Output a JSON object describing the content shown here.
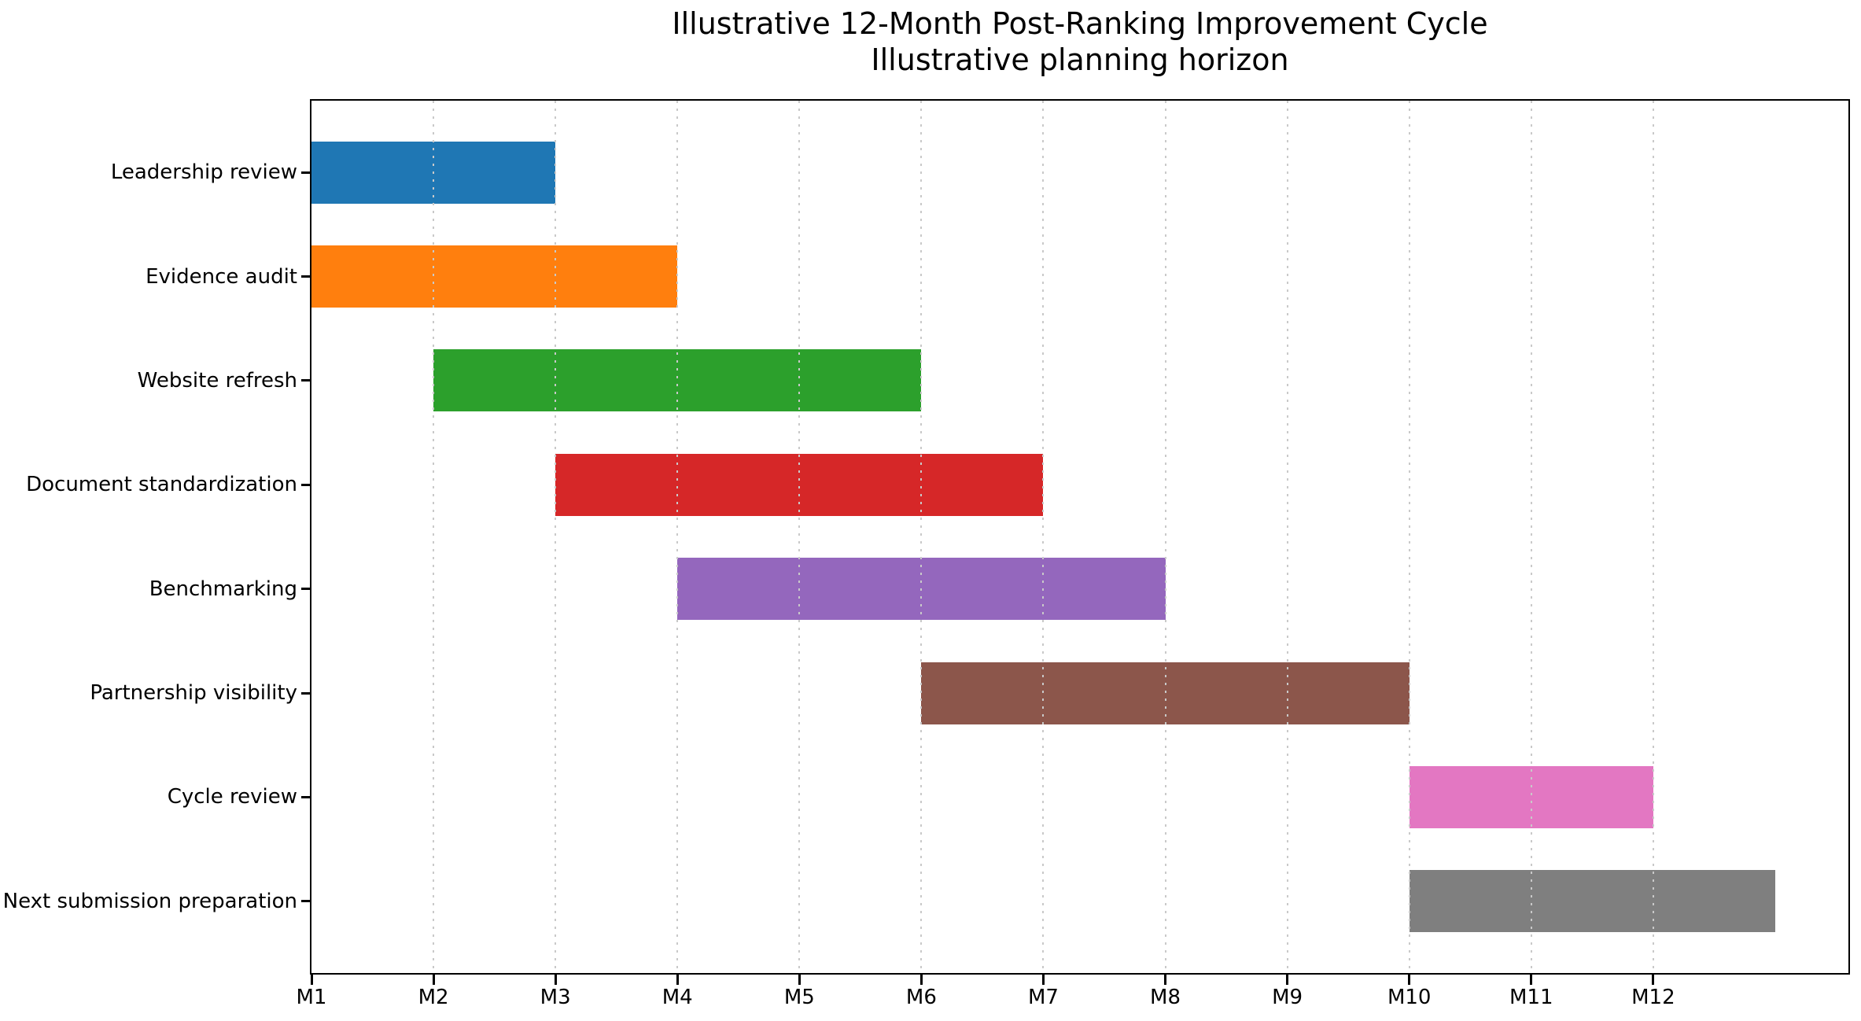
{
  "chart_data": {
    "type": "bar",
    "variant": "gantt",
    "title": "Illustrative 12-Month Post-Ranking Improvement Cycle",
    "subtitle": "Illustrative planning horizon",
    "xlabel": "",
    "ylabel": "",
    "x_tick_labels": [
      "M1",
      "M2",
      "M3",
      "M4",
      "M5",
      "M6",
      "M7",
      "M8",
      "M9",
      "M10",
      "M11",
      "M12"
    ],
    "x_tick_values": [
      1,
      2,
      3,
      4,
      5,
      6,
      7,
      8,
      9,
      10,
      11,
      12
    ],
    "xlim": [
      1,
      13.6
    ],
    "grid": {
      "axis": "x",
      "style": "dotted",
      "color": "#c9c9c9"
    },
    "background_color": "#ffffff",
    "spine_color": "#000000",
    "legend": "none",
    "tasks": [
      {
        "label": "Leadership review",
        "start_month": 1,
        "end_month": 3,
        "duration_months": 2,
        "color": "#1f77b4"
      },
      {
        "label": "Evidence audit",
        "start_month": 1,
        "end_month": 4,
        "duration_months": 3,
        "color": "#ff7f0e"
      },
      {
        "label": "Website refresh",
        "start_month": 2,
        "end_month": 6,
        "duration_months": 4,
        "color": "#2ca02c"
      },
      {
        "label": "Document standardization",
        "start_month": 3,
        "end_month": 7,
        "duration_months": 4,
        "color": "#d62728"
      },
      {
        "label": "Benchmarking",
        "start_month": 4,
        "end_month": 8,
        "duration_months": 4,
        "color": "#9467bd"
      },
      {
        "label": "Partnership visibility",
        "start_month": 6,
        "end_month": 10,
        "duration_months": 4,
        "color": "#8c564b"
      },
      {
        "label": "Cycle review",
        "start_month": 10,
        "end_month": 12,
        "duration_months": 2,
        "color": "#e377c2"
      },
      {
        "label": "Next submission preparation",
        "start_month": 10,
        "end_month": 13,
        "duration_months": 3,
        "color": "#7f7f7f"
      }
    ]
  }
}
